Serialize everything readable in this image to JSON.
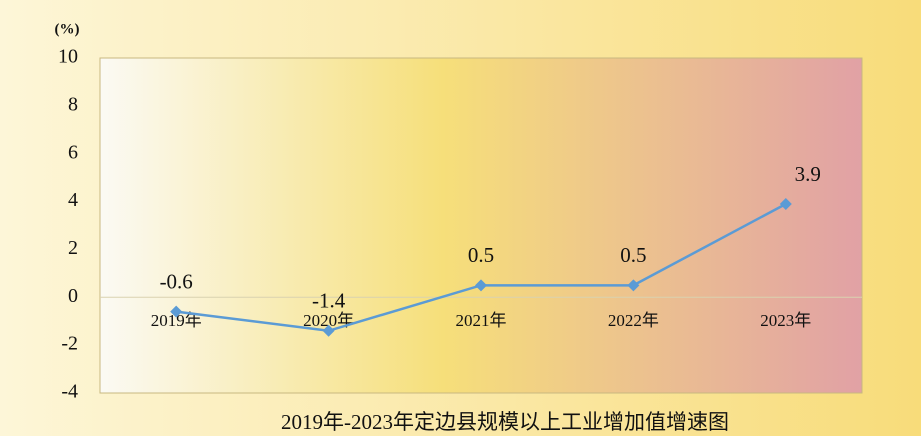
{
  "chart_data": {
    "type": "line",
    "title": "2019年-2023年定边县规模以上工业增加值增速图",
    "y_axis_label": "(%)",
    "categories": [
      "2019年",
      "2020年",
      "2021年",
      "2022年",
      "2023年"
    ],
    "series": [
      {
        "name": "增速",
        "color": "#5b9bd5",
        "values": [
          -0.6,
          -1.4,
          0.5,
          0.5,
          3.9
        ]
      }
    ],
    "ylim": [
      -4,
      10
    ],
    "yticks": [
      -4,
      -2,
      0,
      2,
      4,
      6,
      8,
      10
    ]
  }
}
